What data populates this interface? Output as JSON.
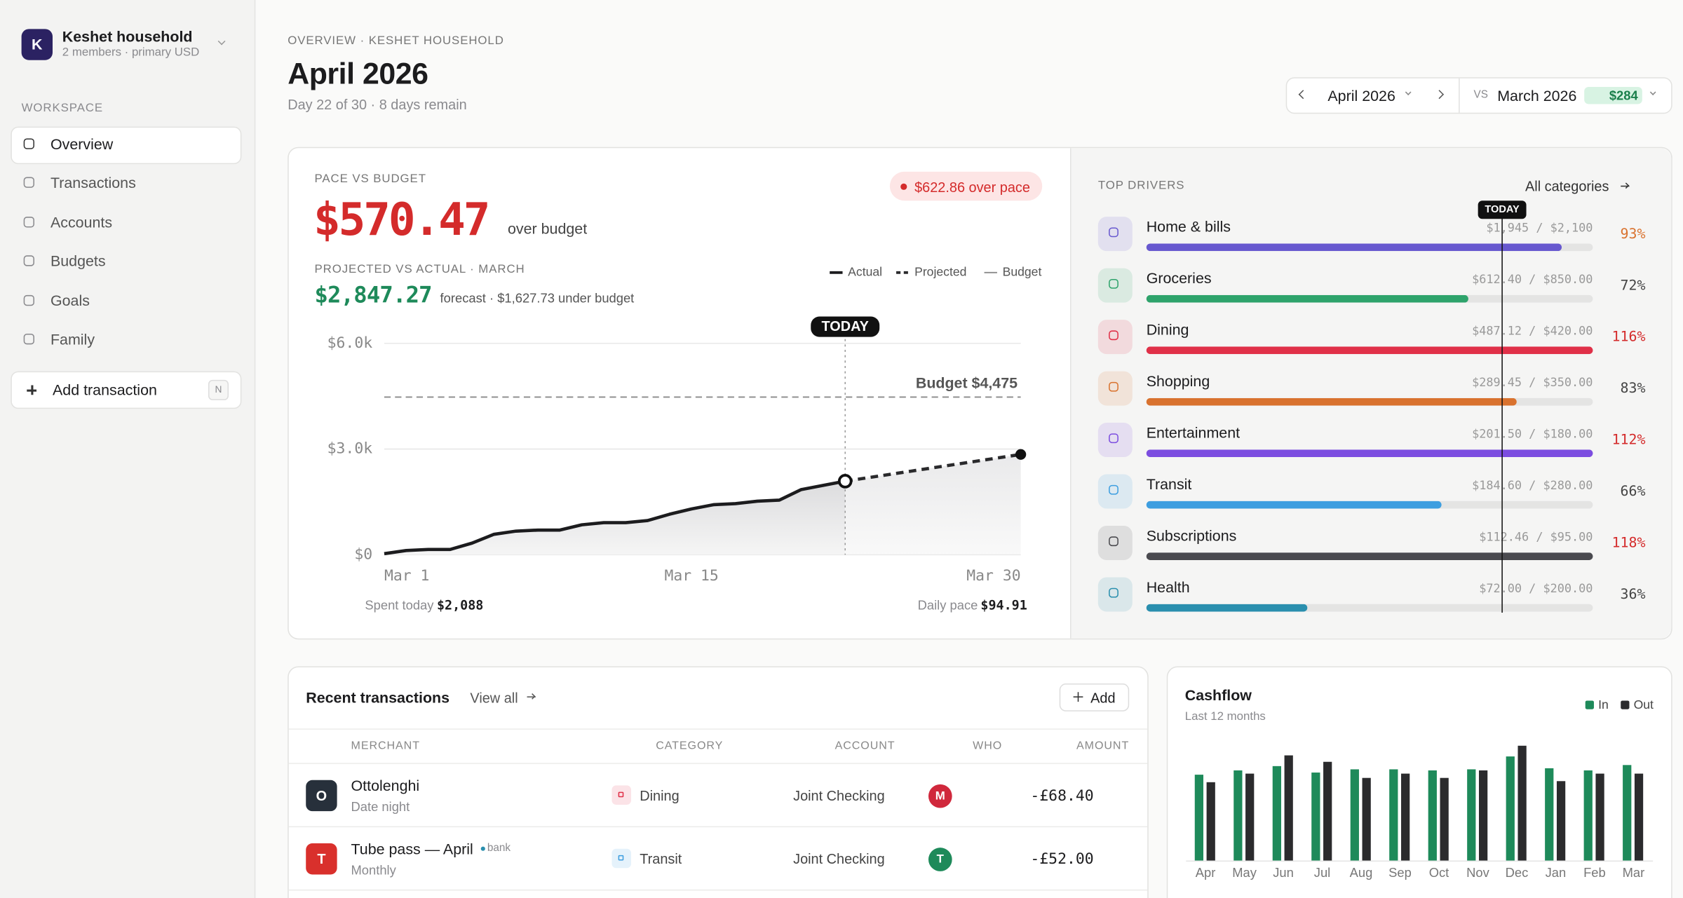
{
  "sidebar": {
    "avatar": "K",
    "household": "Keshet household",
    "meta": "2 members · primary USD",
    "section": "WORKSPACE",
    "nav": [
      "Overview",
      "Transactions",
      "Accounts",
      "Budgets",
      "Goals",
      "Family"
    ],
    "add": "Add transaction",
    "shortcut": "N"
  },
  "header": {
    "eyebrow": "OVERVIEW · KESHET HOUSEHOLD",
    "title": "April 2026",
    "subtitle": "Day 22 of 30 · 8 days remain",
    "period": "April 2026",
    "vs": "VS",
    "compare": "March 2026",
    "delta": "$284"
  },
  "pace": {
    "label": "PACE VS BUDGET",
    "amount": "$570.47",
    "amount_note": "over budget",
    "badge": "$622.86 over pace",
    "projected_label": "PROJECTED VS ACTUAL · MARCH",
    "projected_amount": "$2,847.27",
    "projected_note": "forecast · $1,627.73 under budget",
    "spent_today": {
      "label": "Spent today",
      "value": "$2,088"
    },
    "daily_pace": {
      "label": "Daily pace",
      "value": "$94.91"
    }
  },
  "pace_chart": {
    "type": "line",
    "x": [
      1,
      2,
      3,
      4,
      5,
      6,
      7,
      8,
      9,
      10,
      11,
      12,
      13,
      14,
      15,
      16,
      17,
      18,
      19,
      20,
      21,
      22,
      23,
      24,
      25,
      26,
      27,
      28,
      29,
      30
    ],
    "series": [
      {
        "name": "Actual",
        "color": "#1c1c1e",
        "style": "solid",
        "values": [
          30,
          120,
          150,
          150,
          330,
          580,
          670,
          700,
          700,
          850,
          910,
          910,
          970,
          1150,
          1300,
          1420,
          1450,
          1520,
          1550,
          1850,
          1970,
          2088,
          null,
          null,
          null,
          null,
          null,
          null,
          null,
          null
        ]
      },
      {
        "name": "Projected",
        "color": "#2a2a2c",
        "style": "dashed",
        "values": [
          null,
          null,
          null,
          null,
          null,
          null,
          null,
          null,
          null,
          null,
          null,
          null,
          null,
          null,
          null,
          null,
          null,
          null,
          null,
          null,
          null,
          2088,
          2182.91,
          2277.82,
          2372.73,
          2467.64,
          2562.55,
          2657.46,
          2752.37,
          2847.27
        ]
      }
    ],
    "budget": {
      "name": "Budget",
      "value": 4475,
      "label": "Budget $4,475",
      "color": "#8a8a8a"
    },
    "today": {
      "x": 22,
      "label": "TODAY"
    },
    "xlim": [
      1,
      30
    ],
    "xticks": [
      {
        "value": 1,
        "label": "Mar 1"
      },
      {
        "value": 15,
        "label": "Mar 15"
      },
      {
        "value": 30,
        "label": "Mar 30"
      }
    ],
    "ylim": [
      0,
      6000
    ],
    "yticks": [
      {
        "value": 0,
        "label": "$0"
      },
      {
        "value": 3000,
        "label": "$3.0k"
      },
      {
        "value": 6000,
        "label": "$6.0k"
      }
    ],
    "grid": true
  },
  "top_drivers": {
    "label": "TOP DRIVERS",
    "link": "All categories",
    "today": "TODAY",
    "items": [
      {
        "name": "Home & bills",
        "amount": "$1,945 / $2,100",
        "pct": 93,
        "pct_label": "93%",
        "color": "#6758cf",
        "pct_color": "#d9722e"
      },
      {
        "name": "Groceries",
        "amount": "$612.40 / $850.00",
        "pct": 72,
        "pct_label": "72%",
        "color": "#2ea36b",
        "pct_color": "#444444"
      },
      {
        "name": "Dining",
        "amount": "$487.12 / $420.00",
        "pct": 116,
        "pct_label": "116%",
        "color": "#e03048",
        "pct_color": "#d42b2b"
      },
      {
        "name": "Shopping",
        "amount": "$289.45 / $350.00",
        "pct": 83,
        "pct_label": "83%",
        "color": "#d9722e",
        "pct_color": "#444444"
      },
      {
        "name": "Entertainment",
        "amount": "$201.50 / $180.00",
        "pct": 112,
        "pct_label": "112%",
        "color": "#7c4de0",
        "pct_color": "#d42b2b"
      },
      {
        "name": "Transit",
        "amount": "$184.60 / $280.00",
        "pct": 66,
        "pct_label": "66%",
        "color": "#3d9ee0",
        "pct_color": "#444444"
      },
      {
        "name": "Subscriptions",
        "amount": "$112.46 / $95.00",
        "pct": 118,
        "pct_label": "118%",
        "color": "#4a4a4f",
        "pct_color": "#d42b2b"
      },
      {
        "name": "Health",
        "amount": "$72.00 / $200.00",
        "pct": 36,
        "pct_label": "36%",
        "color": "#2a8fae",
        "pct_color": "#444444"
      }
    ]
  },
  "transactions": {
    "title": "Recent transactions",
    "view_all": "View all",
    "add": "Add",
    "columns": [
      "MERCHANT",
      "CATEGORY",
      "ACCOUNT",
      "WHO",
      "AMOUNT"
    ],
    "rows": [
      {
        "initial": "O",
        "color": "#27303b",
        "merchant": "Ottolenghi",
        "note": "Date night",
        "category": "Dining",
        "category_color": "#e03048",
        "account": "Joint Checking",
        "who": "M",
        "who_color": "#d0283c",
        "amount": "-£68.40"
      },
      {
        "initial": "T",
        "color": "#d9302c",
        "merchant": "Tube pass — April",
        "tag": "bank",
        "note": "Monthly",
        "category": "Transit",
        "category_color": "#3d9ee0",
        "account": "Joint Checking",
        "who": "T",
        "who_color": "#1e8a5a",
        "amount": "-£52.00"
      }
    ]
  },
  "cashflow_chart": {
    "type": "bar",
    "title": "Cashflow",
    "subtitle": "Last 12 months",
    "categories": [
      "Apr",
      "May",
      "Jun",
      "Jul",
      "Aug",
      "Sep",
      "Oct",
      "Nov",
      "Dec",
      "Jan",
      "Feb",
      "Mar"
    ],
    "series": [
      {
        "name": "In",
        "color": "#1e8a5a",
        "values": [
          80,
          84,
          88,
          82,
          85,
          85,
          84,
          85,
          97,
          86,
          84,
          89
        ]
      },
      {
        "name": "Out",
        "color": "#2b2b2d",
        "values": [
          73,
          81,
          98,
          92,
          77,
          81,
          77,
          84,
          107,
          74,
          81,
          81
        ]
      }
    ],
    "ylim": [
      0,
      110
    ]
  }
}
